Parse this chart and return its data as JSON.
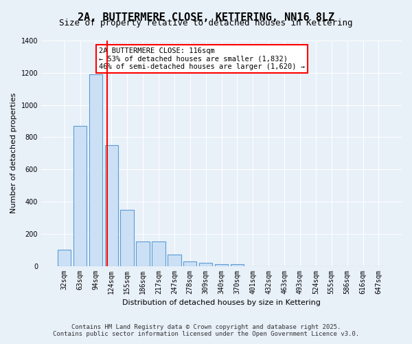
{
  "title": "2A, BUTTERMERE CLOSE, KETTERING, NN16 8LZ",
  "subtitle": "Size of property relative to detached houses in Kettering",
  "xlabel": "Distribution of detached houses by size in Kettering",
  "ylabel": "Number of detached properties",
  "categories": [
    "32sqm",
    "63sqm",
    "94sqm",
    "124sqm",
    "155sqm",
    "186sqm",
    "217sqm",
    "247sqm",
    "278sqm",
    "309sqm",
    "340sqm",
    "370sqm",
    "401sqm",
    "432sqm",
    "463sqm",
    "493sqm",
    "524sqm",
    "555sqm",
    "586sqm",
    "616sqm",
    "647sqm"
  ],
  "values": [
    100,
    870,
    1190,
    750,
    350,
    150,
    150,
    70,
    30,
    20,
    12,
    10,
    0,
    0,
    0,
    0,
    0,
    0,
    0,
    0,
    0
  ],
  "bar_color": "#cce0f5",
  "bar_edge_color": "#5b9bd5",
  "annotation_text_line1": "2A BUTTERMERE CLOSE: 116sqm",
  "annotation_text_line2": "← 53% of detached houses are smaller (1,832)",
  "annotation_text_line3": "46% of semi-detached houses are larger (1,620) →",
  "annotation_box_color": "white",
  "annotation_box_edge_color": "red",
  "red_line_x": 3.233,
  "ylim": [
    0,
    1400
  ],
  "yticks": [
    0,
    200,
    400,
    600,
    800,
    1000,
    1200,
    1400
  ],
  "footer_line1": "Contains HM Land Registry data © Crown copyright and database right 2025.",
  "footer_line2": "Contains public sector information licensed under the Open Government Licence v3.0.",
  "background_color": "#e8f0f8",
  "grid_color": "white",
  "title_fontsize": 11,
  "subtitle_fontsize": 9,
  "axis_label_fontsize": 8,
  "tick_fontsize": 7,
  "annotation_fontsize": 7.5,
  "footer_fontsize": 6.5
}
